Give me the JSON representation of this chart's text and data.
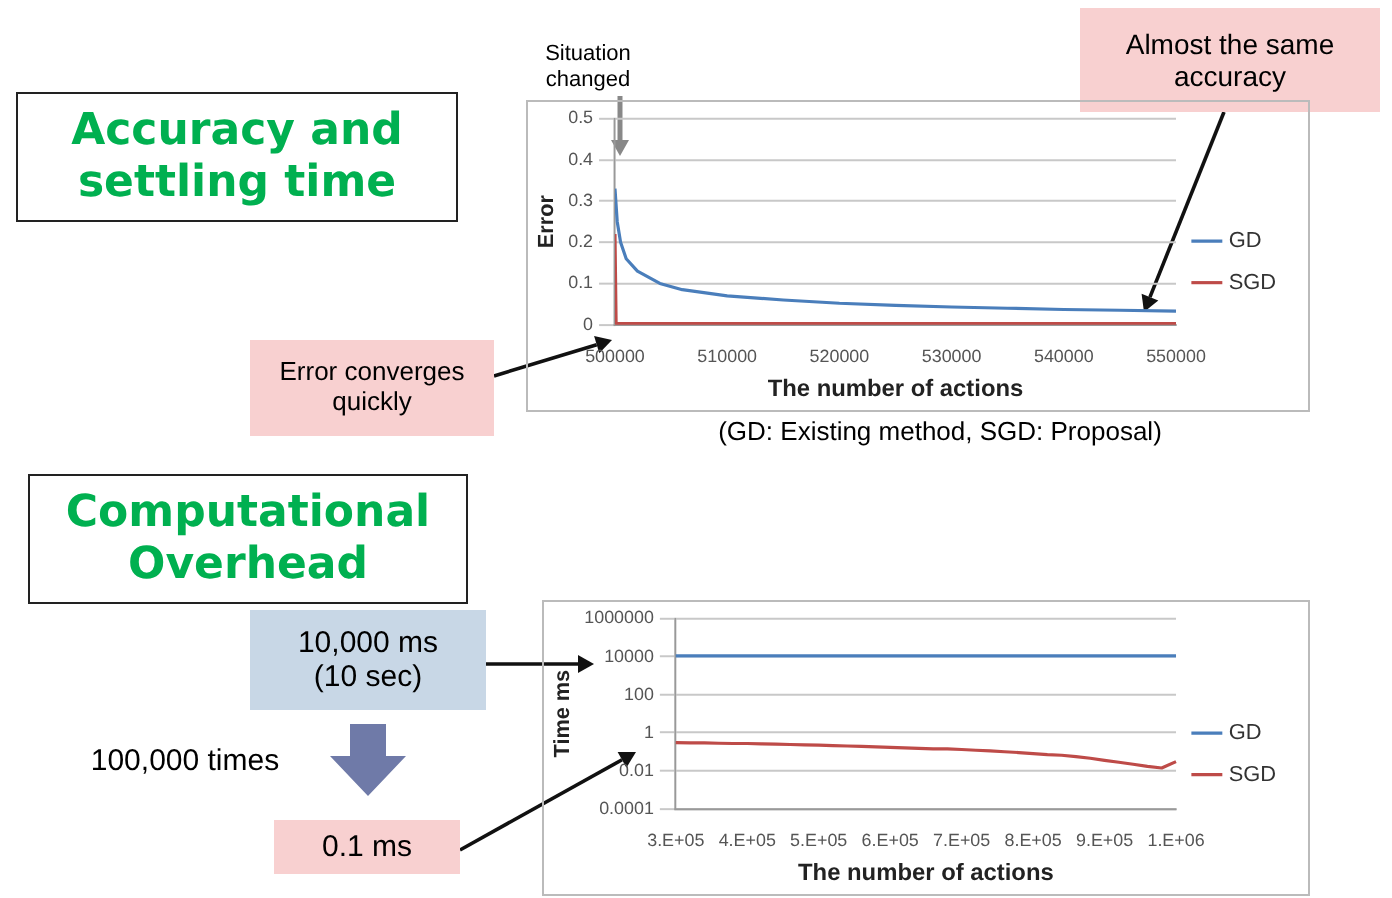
{
  "chart_data": [
    {
      "type": "line",
      "title": "Accuracy and settling time",
      "xlabel": "The number of actions",
      "ylabel": "Error",
      "annotations": [
        "Situation changed",
        "Almost the same accuracy",
        "Error converges quickly",
        "(GD: Existing method, SGD: Proposal)"
      ],
      "xlim": [
        500000,
        550000
      ],
      "xticks": [
        500000,
        510000,
        520000,
        530000,
        540000,
        550000
      ],
      "ylim": [
        0,
        0.5
      ],
      "yticks": [
        0,
        0.1,
        0.2,
        0.3,
        0.4,
        0.5
      ],
      "grid": "y",
      "legend": "right",
      "marker": "none",
      "line_style": "solid",
      "series": [
        {
          "name": "GD",
          "color": "#4a7ebb",
          "x": [
            500000,
            500200,
            500500,
            501000,
            502000,
            504000,
            506000,
            510000,
            515000,
            520000,
            525000,
            530000,
            535000,
            540000,
            545000,
            550000
          ],
          "values": [
            0.33,
            0.25,
            0.2,
            0.16,
            0.13,
            0.1,
            0.085,
            0.07,
            0.06,
            0.052,
            0.047,
            0.043,
            0.04,
            0.037,
            0.035,
            0.033
          ]
        },
        {
          "name": "SGD",
          "color": "#be4b48",
          "x": [
            500000,
            500100,
            510000,
            520000,
            530000,
            540000,
            550000
          ],
          "values": [
            0.22,
            0.003,
            0.003,
            0.003,
            0.003,
            0.003,
            0.003
          ]
        }
      ]
    },
    {
      "type": "line",
      "title": "Computational Overhead",
      "xlabel": "The number of actions",
      "ylabel": "Time ms",
      "annotations": [
        "10,000 ms (10 sec)",
        "100,000 times",
        "0.1 ms"
      ],
      "categories": [
        "3.E+05",
        null,
        null,
        null,
        null,
        "4.E+05",
        null,
        null,
        null,
        null,
        "5.E+05",
        null,
        null,
        null,
        null,
        "6.E+05",
        null,
        null,
        null,
        null,
        "7.E+05",
        null,
        null,
        null,
        null,
        "8.E+05",
        null,
        null,
        null,
        null,
        "9.E+05",
        null,
        null,
        null,
        null,
        "1.E+06"
      ],
      "ylim": [
        0.0001,
        1000000
      ],
      "yticks": [
        0.0001,
        0.01,
        1,
        100,
        10000,
        1000000
      ],
      "log": "y",
      "grid": "y",
      "legend": "right",
      "marker": "none",
      "line_style": "solid",
      "series": [
        {
          "name": "GD",
          "color": "#4a7ebb",
          "values": [
            11000,
            11000,
            11000,
            11000,
            11000,
            11000,
            11000,
            11000,
            11000,
            11000,
            11000,
            11000,
            11000,
            11000,
            11000,
            11000,
            11000,
            11000,
            11000,
            11000,
            11000,
            11000,
            11000,
            11000,
            11000,
            11000,
            11000,
            11000,
            11000,
            11000,
            11000,
            11000,
            11000,
            11000,
            11000,
            11000
          ]
        },
        {
          "name": "SGD",
          "color": "#be4b48",
          "values": [
            0.3,
            0.29,
            0.29,
            0.28,
            0.27,
            0.27,
            0.26,
            0.25,
            0.24,
            0.23,
            0.22,
            0.21,
            0.2,
            0.19,
            0.18,
            0.17,
            0.16,
            0.15,
            0.14,
            0.14,
            0.13,
            0.12,
            0.11,
            0.1,
            0.09,
            0.08,
            0.07,
            0.065,
            0.055,
            0.045,
            0.035,
            0.028,
            0.022,
            0.017,
            0.014,
            0.03
          ]
        }
      ]
    }
  ]
}
